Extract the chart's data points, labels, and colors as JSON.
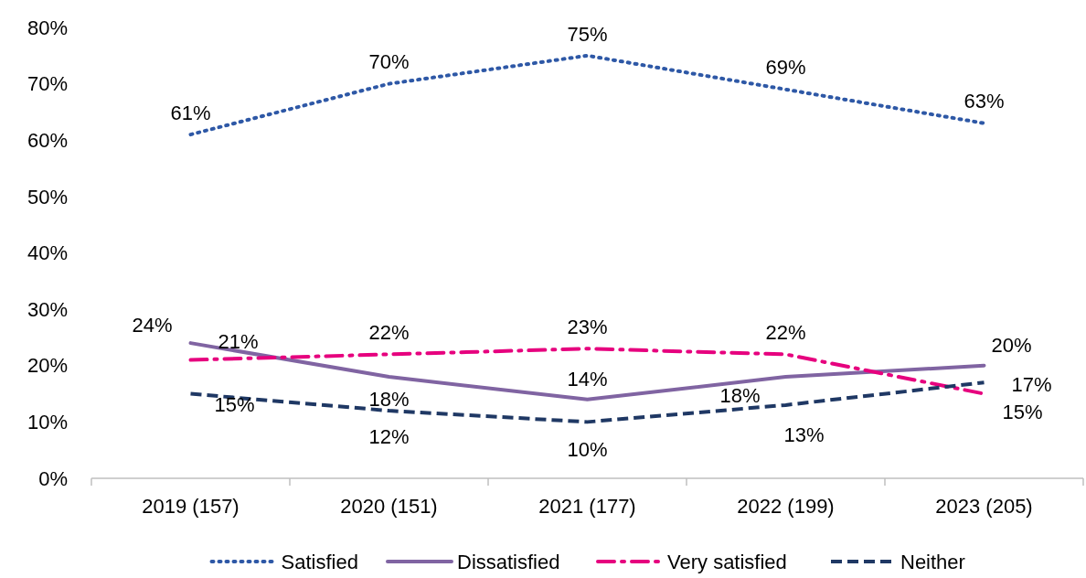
{
  "chart_data": {
    "type": "line",
    "categories": [
      "2019 (157)",
      "2020 (151)",
      "2021 (177)",
      "2022 (199)",
      "2023 (205)"
    ],
    "series": [
      {
        "name": "Satisfied",
        "color": "#2e58a6",
        "values": [
          61,
          70,
          75,
          69,
          63
        ],
        "value_labels": [
          "61%",
          "70%",
          "75%",
          "69%",
          "63%"
        ],
        "line_style": "dotted"
      },
      {
        "name": "Dissatisfied",
        "color": "#8064a2",
        "values": [
          24,
          18,
          14,
          18,
          20
        ],
        "value_labels": [
          "24%",
          "18%",
          "14%",
          "18%",
          "20%"
        ],
        "line_style": "solid"
      },
      {
        "name": "Very satisfied",
        "color": "#e6007e",
        "values": [
          21,
          22,
          23,
          22,
          15
        ],
        "value_labels": [
          "21%",
          "22%",
          "23%",
          "22%",
          "15%"
        ],
        "line_style": "dashdot"
      },
      {
        "name": "Neither",
        "color": "#1f3864",
        "values": [
          15,
          12,
          10,
          13,
          17
        ],
        "value_labels": [
          "15%",
          "12%",
          "10%",
          "13%",
          "17%"
        ],
        "line_style": "dashed"
      }
    ],
    "ylim": [
      0,
      80
    ],
    "yticks": [
      {
        "value": 0,
        "label": "0%"
      },
      {
        "value": 10,
        "label": "10%"
      },
      {
        "value": 20,
        "label": "20%"
      },
      {
        "value": 30,
        "label": "30%"
      },
      {
        "value": 40,
        "label": "40%"
      },
      {
        "value": 50,
        "label": "50%"
      },
      {
        "value": 60,
        "label": "60%"
      },
      {
        "value": 70,
        "label": "70%"
      },
      {
        "value": 80,
        "label": "80%"
      }
    ],
    "legend": "bottom",
    "marker": "none"
  }
}
